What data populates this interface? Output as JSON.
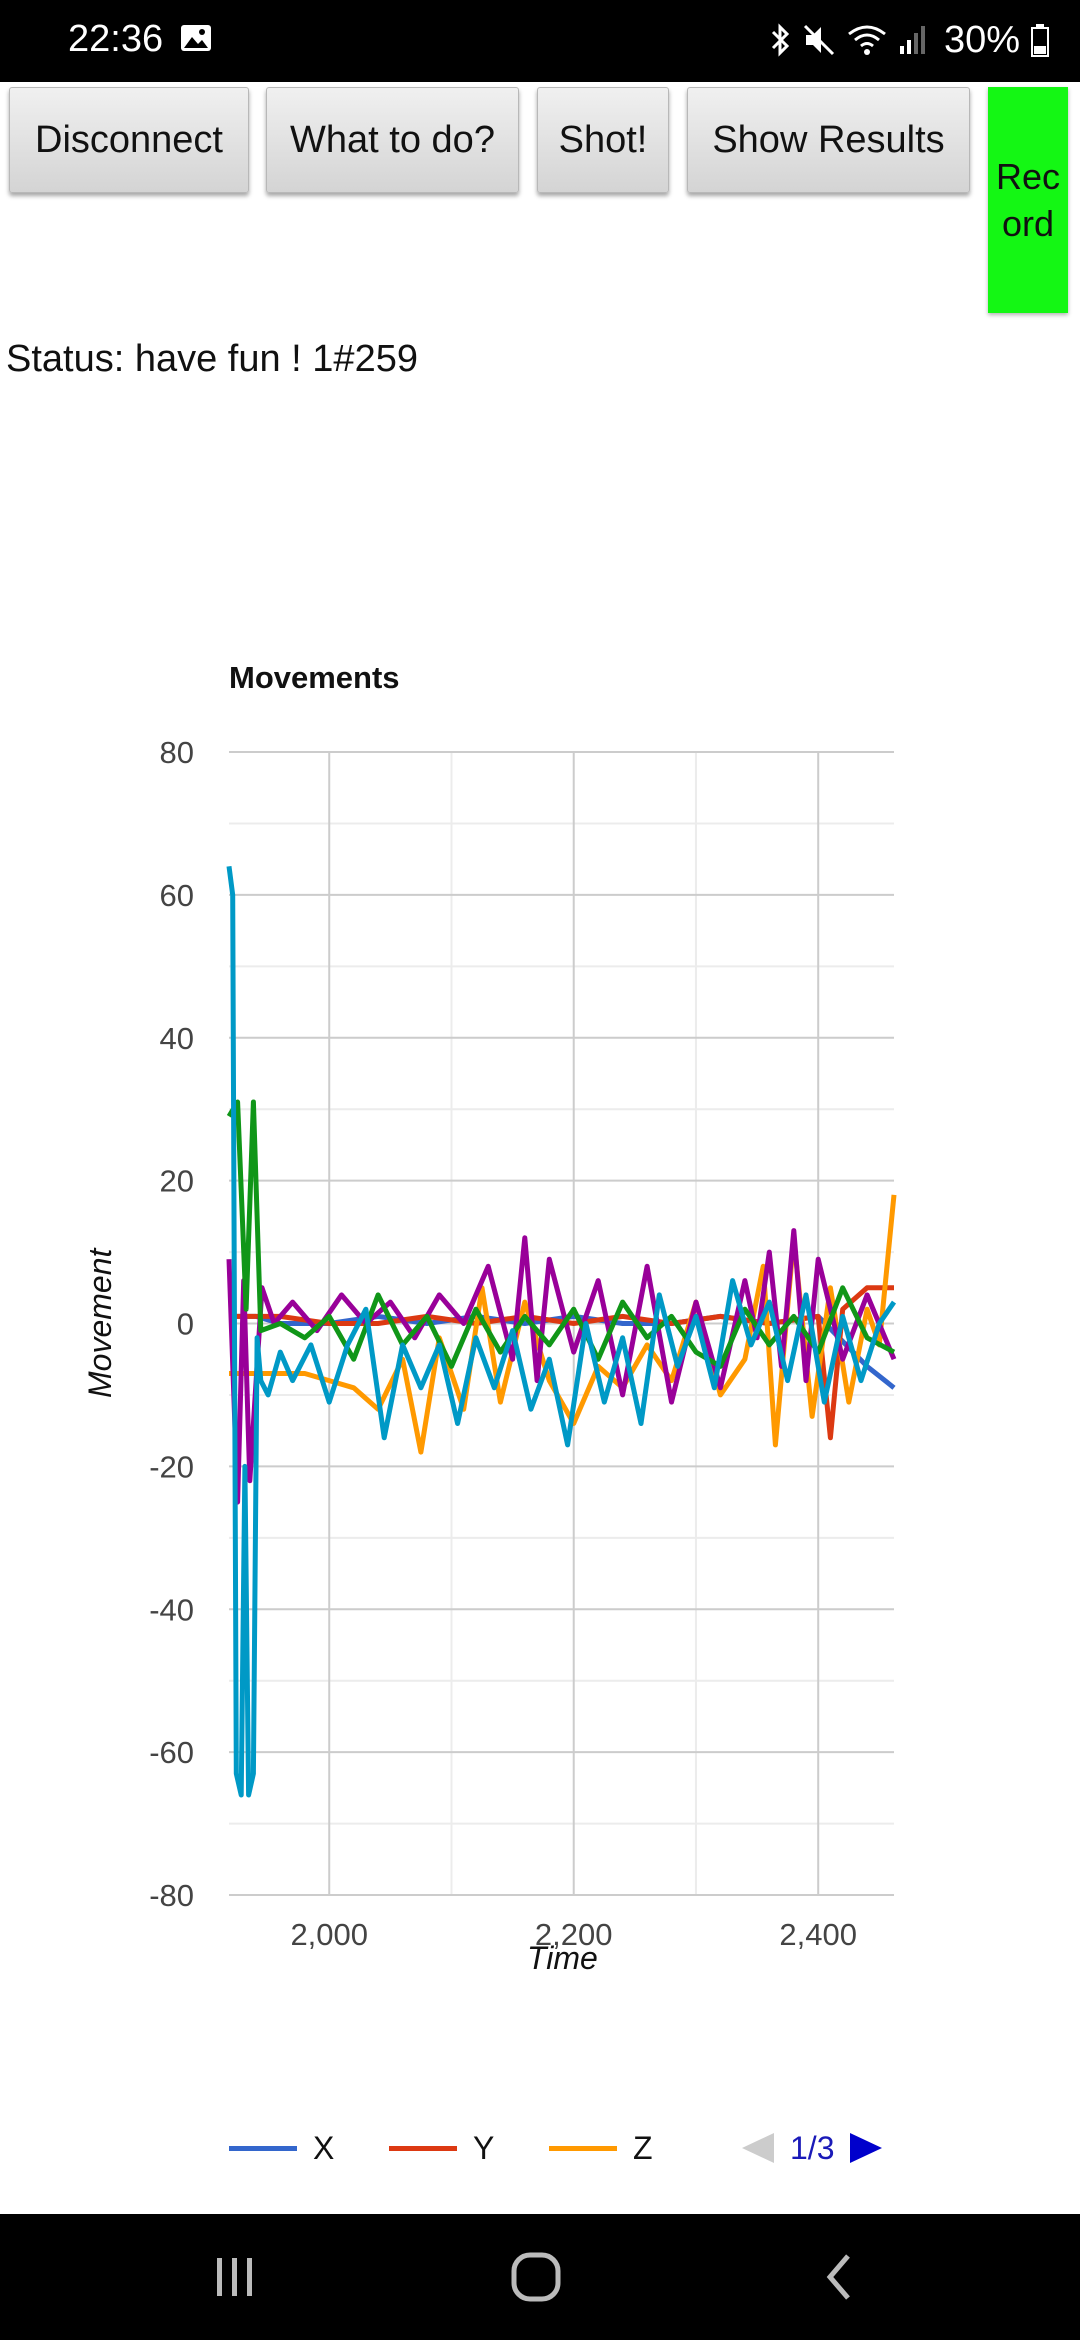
{
  "statusbar": {
    "time": "22:36",
    "battery": "30%"
  },
  "toolbar": {
    "disconnect": "Disconnect",
    "what_to_do": "What to do?",
    "shot": "Shot!",
    "show_results": "Show Results",
    "record": "Record"
  },
  "status_text": "Status: have fun ! 1#259",
  "chart_data": {
    "type": "line",
    "title": "Movements",
    "xlabel": "Time",
    "ylabel": "Movement",
    "ylim": [
      -80,
      80
    ],
    "xlim": [
      1918,
      2462
    ],
    "yticks": [
      80,
      60,
      40,
      20,
      0,
      -20,
      -40,
      -60,
      -80
    ],
    "xticks": [
      2000,
      2200,
      2400
    ],
    "xtick_labels": [
      "2,000",
      "2,200",
      "2,400"
    ],
    "grid": true,
    "legend_position": "bottom",
    "series": [
      {
        "name": "X",
        "color": "#3366cc",
        "x": [
          1918,
          1940,
          1960,
          2000,
          2040,
          2080,
          2120,
          2160,
          2200,
          2240,
          2280,
          2320,
          2360,
          2400,
          2440,
          2462
        ],
        "y": [
          1,
          1,
          0,
          0,
          1,
          0,
          1,
          0,
          1,
          0,
          0,
          1,
          0,
          1,
          -6,
          -9
        ]
      },
      {
        "name": "Y",
        "color": "#dc3912",
        "x": [
          1918,
          1940,
          1960,
          2000,
          2040,
          2080,
          2120,
          2160,
          2200,
          2240,
          2280,
          2320,
          2360,
          2400,
          2410,
          2420,
          2440,
          2462
        ],
        "y": [
          1,
          1,
          1,
          0,
          0,
          1,
          0,
          1,
          0,
          1,
          0,
          1,
          0,
          1,
          -16,
          2,
          5,
          5
        ]
      },
      {
        "name": "Z",
        "color": "#ff9900",
        "x": [
          1918,
          1940,
          1960,
          1980,
          2000,
          2020,
          2040,
          2060,
          2075,
          2090,
          2110,
          2125,
          2140,
          2160,
          2180,
          2200,
          2220,
          2240,
          2260,
          2280,
          2300,
          2320,
          2340,
          2355,
          2365,
          2380,
          2395,
          2410,
          2425,
          2440,
          2450,
          2462
        ],
        "y": [
          -7,
          -7,
          -7,
          -7,
          -8,
          -9,
          -12,
          -5,
          -18,
          -2,
          -12,
          5,
          -11,
          3,
          -8,
          -14,
          -6,
          -9,
          -3,
          -8,
          3,
          -10,
          -5,
          8,
          -17,
          12,
          -13,
          5,
          -11,
          2,
          -3,
          18
        ]
      },
      {
        "color": "#990099",
        "x": [
          1918,
          1925,
          1930,
          1935,
          1945,
          1955,
          1970,
          1990,
          2010,
          2030,
          2050,
          2070,
          2090,
          2110,
          2130,
          2150,
          2160,
          2170,
          2180,
          2200,
          2220,
          2240,
          2260,
          2280,
          2300,
          2320,
          2340,
          2350,
          2360,
          2370,
          2380,
          2390,
          2400,
          2420,
          2440,
          2462
        ],
        "y": [
          9,
          -25,
          6,
          -22,
          5,
          0,
          3,
          -1,
          4,
          0,
          3,
          -2,
          4,
          0,
          8,
          -5,
          12,
          -8,
          9,
          -4,
          6,
          -10,
          8,
          -11,
          3,
          -9,
          6,
          -2,
          10,
          -6,
          13,
          -8,
          9,
          -5,
          4,
          -5
        ]
      },
      {
        "color": "#109618",
        "x": [
          1918,
          1925,
          1932,
          1938,
          1944,
          1960,
          1980,
          2000,
          2020,
          2040,
          2060,
          2080,
          2100,
          2120,
          2140,
          2160,
          2180,
          2200,
          2220,
          2240,
          2260,
          2280,
          2300,
          2320,
          2340,
          2360,
          2380,
          2400,
          2420,
          2440,
          2462
        ],
        "y": [
          29,
          31,
          2,
          31,
          -1,
          0,
          -2,
          1,
          -5,
          4,
          -3,
          1,
          -6,
          2,
          -4,
          1,
          -3,
          2,
          -5,
          3,
          -2,
          1,
          -4,
          -6,
          2,
          -3,
          1,
          -4,
          5,
          -2,
          -4
        ]
      },
      {
        "color": "#0099c6",
        "x": [
          1918,
          1921,
          1924,
          1928,
          1931,
          1934,
          1938,
          1941,
          1944,
          1950,
          1960,
          1970,
          1985,
          2000,
          2015,
          2030,
          2045,
          2060,
          2075,
          2090,
          2105,
          2120,
          2135,
          2150,
          2165,
          2180,
          2195,
          2210,
          2225,
          2240,
          2255,
          2270,
          2285,
          2300,
          2315,
          2330,
          2345,
          2360,
          2375,
          2390,
          2405,
          2420,
          2435,
          2450,
          2462
        ],
        "y": [
          64,
          60,
          -63,
          -66,
          -20,
          -66,
          -63,
          -2,
          -8,
          -10,
          -4,
          -8,
          -3,
          -11,
          -3,
          2,
          -16,
          -3,
          -9,
          -3,
          -14,
          -2,
          -9,
          -1,
          -12,
          -5,
          -17,
          0,
          -11,
          -2,
          -14,
          4,
          -6,
          1,
          -9,
          6,
          -3,
          3,
          -8,
          4,
          -11,
          1,
          -8,
          0,
          3
        ]
      }
    ]
  },
  "legend": {
    "x": "X",
    "y": "Y",
    "z": "Z"
  },
  "pager": {
    "text": "1/3"
  }
}
